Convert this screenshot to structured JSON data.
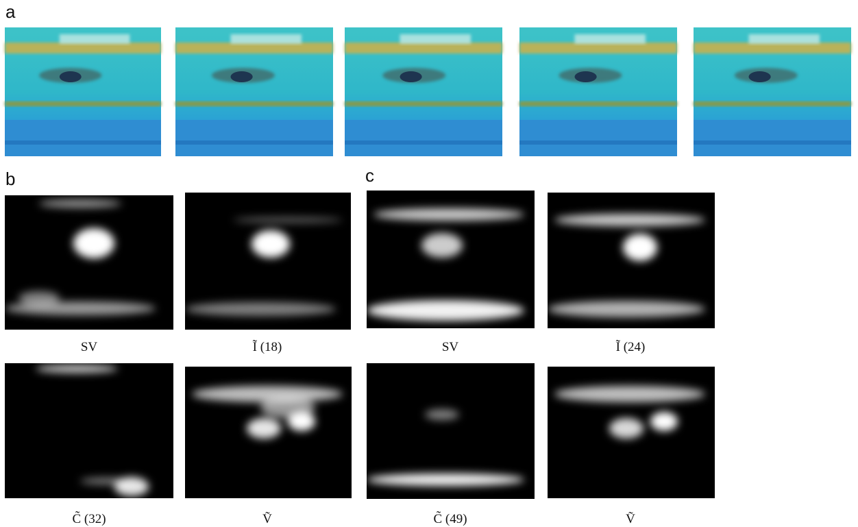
{
  "panel_labels": [
    "a",
    "b",
    "c"
  ],
  "captions": [
    "SV",
    "Ĩ (18)",
    "SV",
    "Ĩ (24)",
    "C̃ (32)",
    "Ṽ",
    "C̃ (49)",
    "Ṽ"
  ]
}
